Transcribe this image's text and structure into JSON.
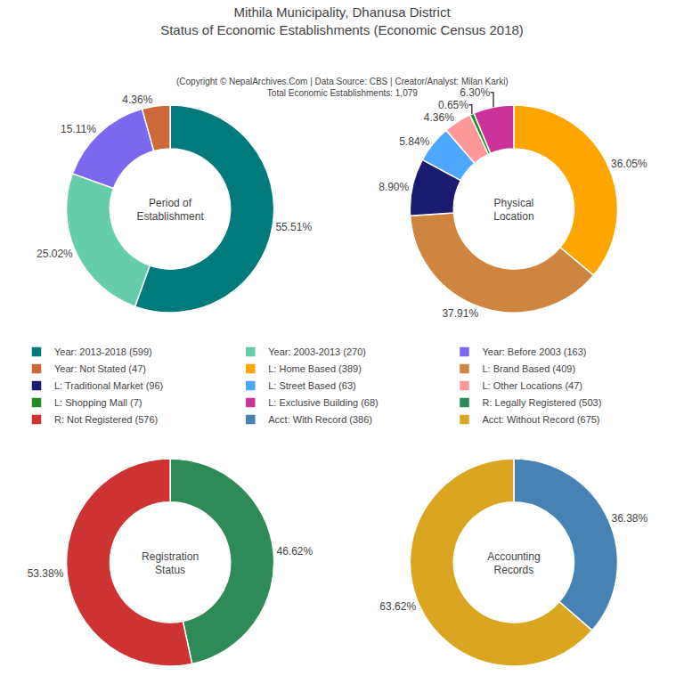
{
  "title": "Mithila Municipality, Dhanusa District\nStatus of Economic Establishments (Economic Census 2018)",
  "subtitle": "(Copyright © NepalArchives.Com | Data Source: CBS | Creator/Analyst: Milan Karki)\nTotal Economic Establishments: 1,079",
  "chart_data": [
    {
      "type": "pie",
      "title": "Period of\nEstablishment",
      "categories": [
        "Year: 2013-2018 (599)",
        "Year: 2003-2013 (270)",
        "Year: Before 2003 (163)",
        "Year: Not Stated (47)"
      ],
      "values": [
        55.51,
        25.02,
        15.11,
        4.36
      ],
      "value_labels": [
        "55.51%",
        "25.02%",
        "15.11%",
        "4.36%"
      ],
      "colors": [
        "#007a7a",
        "#66cdaa",
        "#7b68ee",
        "#cd6839"
      ],
      "data_labels": true,
      "legend": "center"
    },
    {
      "type": "pie",
      "title": "Physical\nLocation",
      "categories": [
        "L: Home Based (389)",
        "L: Brand Based (409)",
        "L: Traditional Market (96)",
        "L: Street Based (63)",
        "L: Other Locations (47)",
        "L: Shopping Mall (7)",
        "L: Exclusive Building (68)"
      ],
      "values": [
        36.05,
        37.91,
        8.9,
        5.84,
        4.36,
        0.65,
        6.3
      ],
      "value_labels": [
        "36.05%",
        "37.91%",
        "8.90%",
        "5.84%",
        "4.36%",
        "0.65%",
        "6.30%"
      ],
      "colors": [
        "#ffa500",
        "#cd853f",
        "#1a1a6e",
        "#4da6ff",
        "#ff9999",
        "#228b22",
        "#cc3399"
      ],
      "data_labels": true,
      "legend": "center"
    },
    {
      "type": "pie",
      "title": "Registration\nStatus",
      "categories": [
        "R: Legally Registered (503)",
        "R: Not Registered (576)"
      ],
      "values": [
        46.62,
        53.38
      ],
      "value_labels": [
        "46.62%",
        "53.38%"
      ],
      "colors": [
        "#2e8b57",
        "#cd3333"
      ],
      "data_labels": true,
      "legend": "center"
    },
    {
      "type": "pie",
      "title": "Accounting\nRecords",
      "categories": [
        "Acct: With Record (386)",
        "Acct: Without Record (675)"
      ],
      "values": [
        36.38,
        63.62
      ],
      "value_labels": [
        "36.38%",
        "63.62%"
      ],
      "colors": [
        "#4682b4",
        "#daa520"
      ],
      "data_labels": true,
      "legend": "center"
    }
  ]
}
